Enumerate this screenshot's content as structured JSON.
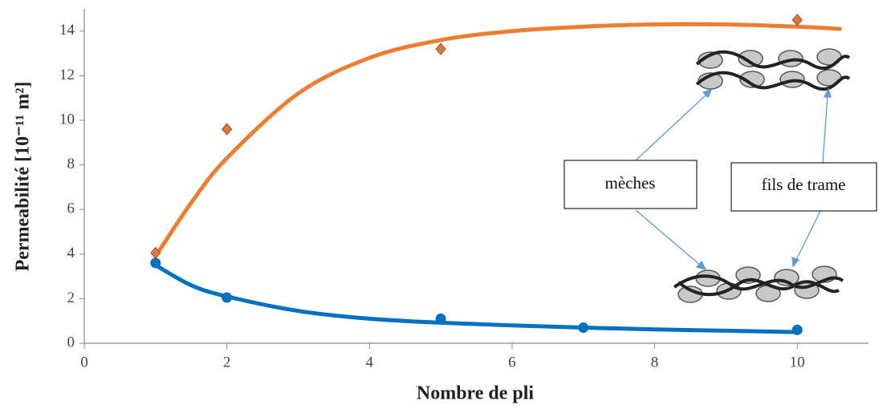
{
  "chart_data": {
    "type": "scatter",
    "x_label": "Nombre de pli",
    "y_label": "Permeabilité [10⁻¹¹ m²]",
    "annotations": [
      "mèches",
      "fils de trame"
    ],
    "xlim": [
      0,
      11
    ],
    "xticks": [
      0,
      2,
      4,
      6,
      8,
      10
    ],
    "ylim": [
      0,
      15
    ],
    "yticks": [
      0,
      2,
      4,
      6,
      8,
      10,
      12,
      14
    ],
    "series": [
      {
        "color": "#ed7d31",
        "marker": "diamond",
        "x": [
          1,
          2,
          5,
          10
        ],
        "values": [
          4.05,
          9.6,
          13.2,
          14.5
        ]
      },
      {
        "color": "#0070c0",
        "marker": "circle",
        "x": [
          1,
          2,
          5,
          7,
          10
        ],
        "values": [
          3.6,
          2.05,
          1.1,
          0.7,
          0.6
        ]
      }
    ],
    "trendlines": [
      {
        "color": "#ed7d31",
        "x": [
          1,
          1.5,
          2,
          3,
          4,
          5,
          6,
          7,
          8,
          9,
          10,
          10.6
        ],
        "values": [
          3.9,
          6.3,
          8.3,
          11.2,
          12.8,
          13.6,
          14.0,
          14.2,
          14.3,
          14.3,
          14.2,
          14.1
        ]
      },
      {
        "color": "#0070c0",
        "x": [
          1,
          1.5,
          2,
          3,
          4,
          5,
          6,
          7,
          8,
          9,
          10
        ],
        "values": [
          3.5,
          2.6,
          2.1,
          1.45,
          1.1,
          0.92,
          0.8,
          0.7,
          0.62,
          0.56,
          0.5
        ]
      }
    ]
  }
}
